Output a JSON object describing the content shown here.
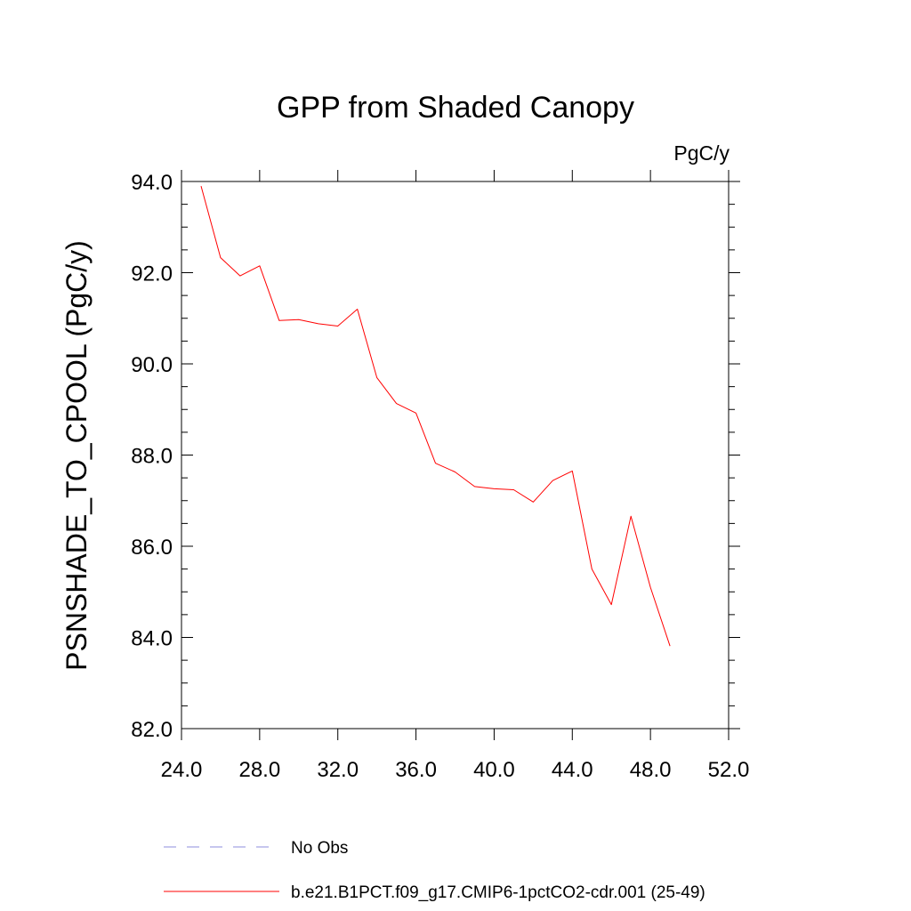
{
  "chart_data": {
    "type": "line",
    "title": "GPP from Shaded Canopy",
    "units_label": "PgC/y",
    "xlabel": "",
    "ylabel": "PSNSHADE_TO_CPOOL  (PgC/y)",
    "xlim": [
      24.0,
      52.0
    ],
    "ylim": [
      82.0,
      94.0
    ],
    "xticks": [
      "24.0",
      "28.0",
      "32.0",
      "36.0",
      "40.0",
      "44.0",
      "48.0",
      "52.0"
    ],
    "yticks": [
      "82.0",
      "84.0",
      "86.0",
      "88.0",
      "90.0",
      "92.0",
      "94.0"
    ],
    "xtick_values": [
      24,
      28,
      32,
      36,
      40,
      44,
      48,
      52
    ],
    "ytick_values": [
      82,
      84,
      86,
      88,
      90,
      92,
      94
    ],
    "grid": false,
    "legend_position": "bottom",
    "series": [
      {
        "name": "b.e21.B1PCT.f09_g17.CMIP6-1pctCO2-cdr.001 (25-49)",
        "color": "#ff0000",
        "style": "solid",
        "x": [
          25,
          26,
          27,
          28,
          29,
          30,
          31,
          32,
          33,
          34,
          35,
          36,
          37,
          38,
          39,
          40,
          41,
          42,
          43,
          44,
          45,
          46,
          47,
          48,
          49
        ],
        "y": [
          93.9,
          92.33,
          91.93,
          92.15,
          90.95,
          90.97,
          90.88,
          90.83,
          91.2,
          89.7,
          89.13,
          88.92,
          87.82,
          87.63,
          87.31,
          87.26,
          87.24,
          86.97,
          87.44,
          87.65,
          85.5,
          84.72,
          86.66,
          85.1,
          83.81
        ]
      }
    ],
    "legend": [
      {
        "label": "No Obs",
        "color": "#8e8edc",
        "style": "dashed"
      },
      {
        "label": "b.e21.B1PCT.f09_g17.CMIP6-1pctCO2-cdr.001 (25-49)",
        "color": "#ff0000",
        "style": "solid"
      }
    ]
  }
}
